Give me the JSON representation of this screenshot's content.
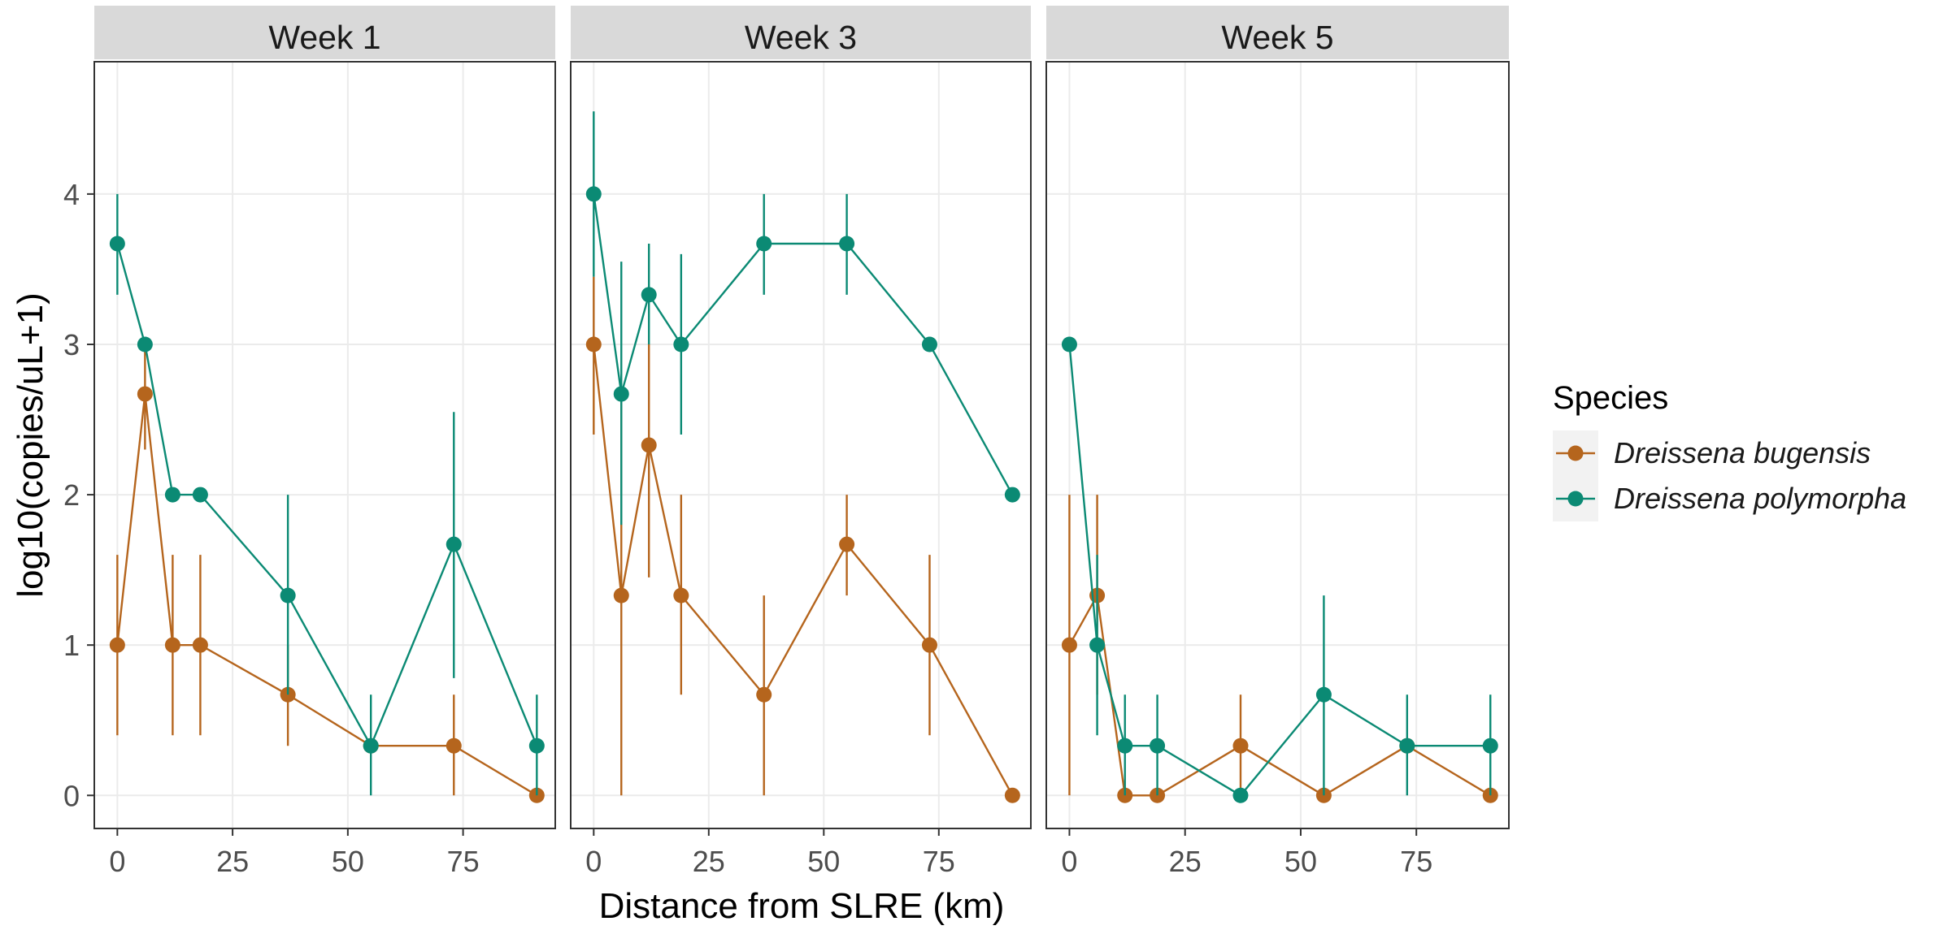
{
  "chart_data": {
    "type": "line",
    "facets": [
      "Week 1",
      "Week 3",
      "Week 5"
    ],
    "xlabel": "Distance from SLRE (km)",
    "ylabel": "log10(copies/uL+1)",
    "xlim": [
      -5,
      95
    ],
    "ylim": [
      -0.22,
      4.88
    ],
    "x_ticks": [
      0,
      25,
      50,
      75
    ],
    "y_ticks": [
      0,
      1,
      2,
      3,
      4
    ],
    "legend": {
      "title": "Species",
      "position": "right",
      "entries": [
        "Dreissena bugensis",
        "Dreissena polymorpha"
      ]
    },
    "colors": {
      "Dreissena bugensis": "#b5651d",
      "Dreissena polymorpha": "#0b8a74",
      "strip_bg": "#d9d9d9",
      "panel_border": "#333333",
      "grid": "#ebebeb"
    },
    "series": [
      {
        "name": "Dreissena bugensis",
        "panels": [
          {
            "facet": "Week 1",
            "x": [
              0,
              6,
              12,
              18,
              37,
              55,
              73,
              91
            ],
            "y": [
              1.0,
              2.67,
              1.0,
              1.0,
              0.67,
              0.33,
              0.33,
              0.0
            ],
            "ymin": [
              0.4,
              2.3,
              0.4,
              0.4,
              0.33,
              0.33,
              0.0,
              0.0
            ],
            "ymax": [
              1.6,
              3.0,
              1.6,
              1.6,
              1.0,
              0.33,
              0.67,
              0.0
            ]
          },
          {
            "facet": "Week 3",
            "x": [
              0,
              6,
              12,
              19,
              37,
              55,
              73,
              91
            ],
            "y": [
              3.0,
              1.33,
              2.33,
              1.33,
              0.67,
              1.67,
              1.0,
              0.0
            ],
            "ymin": [
              2.4,
              0.0,
              1.45,
              0.67,
              0.0,
              1.33,
              0.4,
              0.0
            ],
            "ymax": [
              3.45,
              2.67,
              3.0,
              2.0,
              1.33,
              2.0,
              1.6,
              0.0
            ]
          },
          {
            "facet": "Week 5",
            "x": [
              0,
              6,
              12,
              19,
              37,
              55,
              73,
              91
            ],
            "y": [
              1.0,
              1.33,
              0.0,
              0.0,
              0.33,
              0.0,
              0.33,
              0.0
            ],
            "ymin": [
              0.0,
              0.67,
              0.0,
              0.0,
              0.0,
              0.0,
              0.33,
              0.0
            ],
            "ymax": [
              2.0,
              2.0,
              0.0,
              0.0,
              0.67,
              0.0,
              0.33,
              0.0
            ]
          }
        ]
      },
      {
        "name": "Dreissena polymorpha",
        "panels": [
          {
            "facet": "Week 1",
            "x": [
              0,
              6,
              12,
              18,
              37,
              55,
              73,
              91
            ],
            "y": [
              3.67,
              3.0,
              2.0,
              2.0,
              1.33,
              0.33,
              1.67,
              0.33
            ],
            "ymin": [
              3.33,
              3.0,
              2.0,
              2.0,
              0.67,
              0.0,
              0.78,
              0.0
            ],
            "ymax": [
              4.0,
              3.0,
              2.0,
              2.0,
              2.0,
              0.67,
              2.55,
              0.67
            ]
          },
          {
            "facet": "Week 3",
            "x": [
              0,
              6,
              12,
              19,
              37,
              55,
              73,
              91
            ],
            "y": [
              4.0,
              2.67,
              3.33,
              3.0,
              3.67,
              3.67,
              3.0,
              2.0
            ],
            "ymin": [
              3.45,
              1.8,
              3.0,
              2.4,
              3.33,
              3.33,
              3.0,
              2.0
            ],
            "ymax": [
              4.55,
              3.55,
              3.67,
              3.6,
              4.0,
              4.0,
              3.0,
              2.0
            ]
          },
          {
            "facet": "Week 5",
            "x": [
              0,
              6,
              12,
              19,
              37,
              55,
              73,
              91
            ],
            "y": [
              3.0,
              1.0,
              0.33,
              0.33,
              0.0,
              0.67,
              0.33,
              0.33
            ],
            "ymin": [
              3.0,
              0.4,
              0.0,
              0.0,
              0.0,
              0.0,
              0.0,
              0.0
            ],
            "ymax": [
              3.0,
              1.6,
              0.67,
              0.67,
              0.0,
              1.33,
              0.67,
              0.67
            ]
          }
        ]
      }
    ]
  }
}
